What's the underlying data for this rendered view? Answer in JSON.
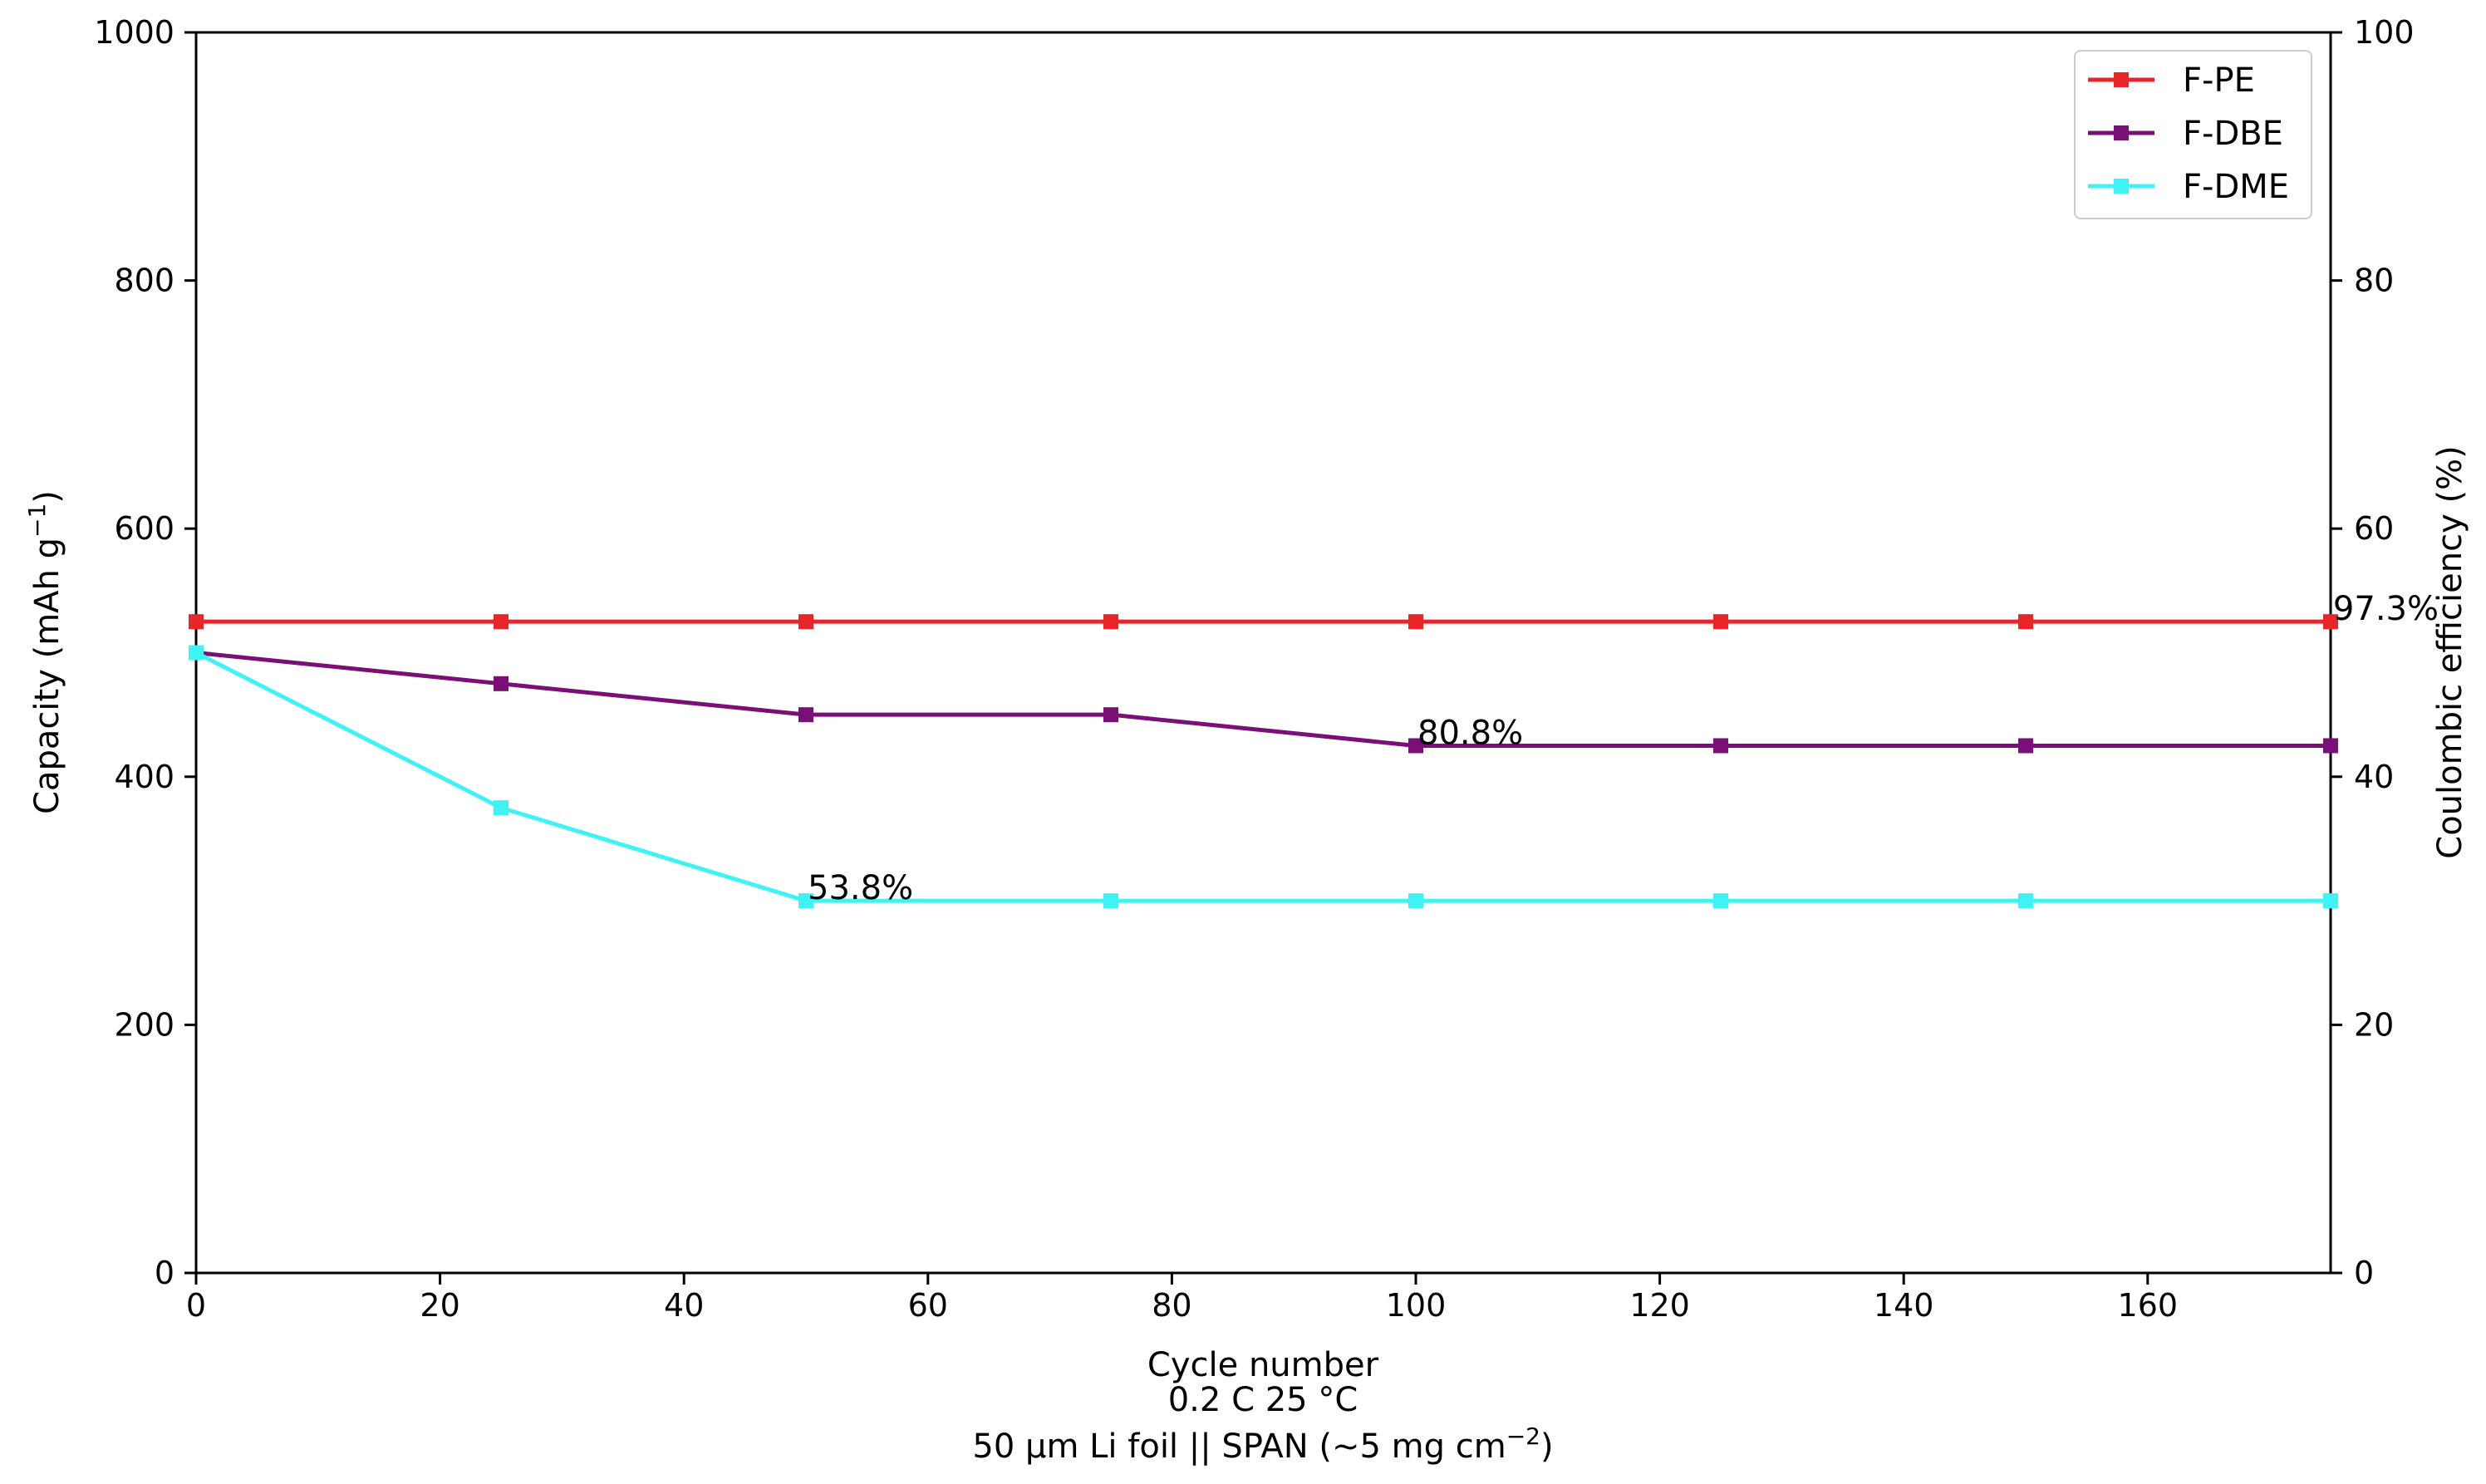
{
  "chart_data": {
    "type": "line",
    "x_axis": {
      "label": "Cycle number",
      "sub_labels": [
        "0.2 C 25 °C"
      ],
      "range": [
        0,
        175
      ],
      "ticks": [
        0,
        20,
        40,
        60,
        80,
        100,
        120,
        140,
        160
      ]
    },
    "x_footer": {
      "prefix": "50 µm Li foil || SPAN (~5 mg cm",
      "superscript": "−2",
      "suffix": ")"
    },
    "y_axis_left": {
      "label_prefix": "Capacity (mAh g",
      "label_superscript": "−1",
      "label_suffix": ")",
      "range": [
        0,
        1000
      ],
      "ticks": [
        0,
        200,
        400,
        600,
        800,
        1000
      ]
    },
    "y_axis_right": {
      "label": "Coulombic efficiency (%)",
      "range": [
        0,
        100
      ],
      "ticks": [
        0,
        20,
        40,
        60,
        80,
        100
      ]
    },
    "series": [
      {
        "name": "F-PE",
        "color": "#e8262a",
        "x": [
          0,
          25,
          50,
          75,
          100,
          125,
          150,
          175
        ],
        "y": [
          525,
          525,
          525,
          525,
          525,
          525,
          525,
          525
        ]
      },
      {
        "name": "F-DBE",
        "color": "#7a1077",
        "x": [
          0,
          25,
          50,
          75,
          100,
          125,
          150,
          175
        ],
        "y": [
          500,
          475,
          450,
          450,
          425,
          425,
          425,
          425
        ]
      },
      {
        "name": "F-DME",
        "color": "#3ff2f5",
        "x": [
          0,
          25,
          50,
          75,
          100,
          125,
          150,
          175
        ],
        "y": [
          500,
          375,
          300,
          300,
          300,
          300,
          300,
          300
        ]
      }
    ],
    "annotations": [
      {
        "text": "97.3%",
        "x": 175,
        "y": 525,
        "anchor": "end"
      },
      {
        "text": "80.8%",
        "x": 100,
        "y": 425,
        "anchor": "start"
      },
      {
        "text": "53.8%",
        "x": 50,
        "y": 300,
        "anchor": "start"
      }
    ],
    "legend": {
      "position": "top-right"
    },
    "grid": false
  }
}
